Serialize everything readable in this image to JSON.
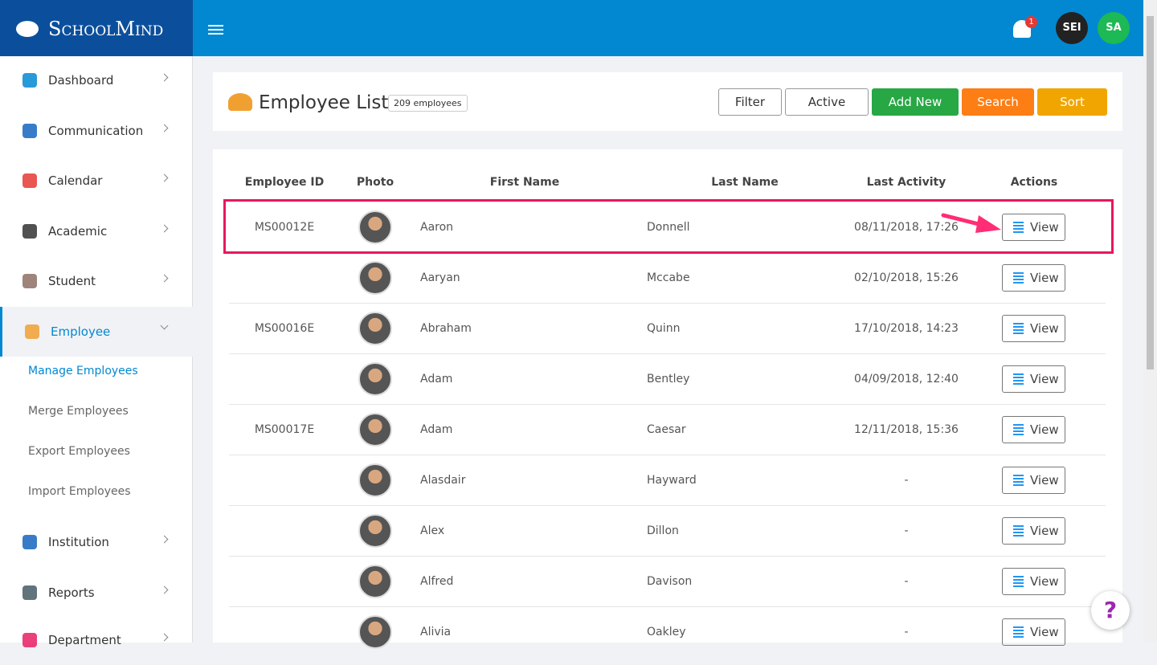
{
  "header": {
    "brand": "SchoolMind",
    "notification_count": "1",
    "avatars": [
      "SEI",
      "SA"
    ]
  },
  "sidebar": {
    "items": [
      "Dashboard",
      "Communication",
      "Calendar",
      "Academic",
      "Student",
      "Employee",
      "Institution",
      "Reports",
      "Department"
    ],
    "submenu": [
      "Manage Employees",
      "Merge Employees",
      "Export Employees",
      "Import Employees"
    ]
  },
  "page": {
    "title": "Employee List",
    "count": "209 employees",
    "buttons": [
      "Filter",
      "Active",
      "Add New",
      "Search",
      "Sort"
    ]
  },
  "table": {
    "columns": [
      "Employee ID",
      "Photo",
      "First Name",
      "Last Name",
      "Last Activity",
      "Actions"
    ],
    "rows": [
      {
        "id": "MS00012E",
        "first": "Aaron",
        "last": "Donnell",
        "activity": "08/11/2018, 17:26",
        "action": "View"
      },
      {
        "id": null,
        "first": "Aaryan",
        "last": "Mccabe",
        "activity": "02/10/2018, 15:26",
        "action": "View"
      },
      {
        "id": "MS00016E",
        "first": "Abraham",
        "last": "Quinn",
        "activity": "17/10/2018, 14:23",
        "action": "View"
      },
      {
        "id": null,
        "first": "Adam",
        "last": "Bentley",
        "activity": "04/09/2018, 12:40",
        "action": "View"
      },
      {
        "id": "MS00017E",
        "first": "Adam",
        "last": "Caesar",
        "activity": "12/11/2018, 15:36",
        "action": "View"
      },
      {
        "id": null,
        "first": "Alasdair",
        "last": "Hayward",
        "activity": "-",
        "action": "View"
      },
      {
        "id": null,
        "first": "Alex",
        "last": "Dillon",
        "activity": "-",
        "action": "View"
      },
      {
        "id": null,
        "first": "Alfred",
        "last": "Davison",
        "activity": "-",
        "action": "View"
      },
      {
        "id": null,
        "first": "Alivia",
        "last": "Oakley",
        "activity": "-",
        "action": "View"
      }
    ]
  },
  "help": "?"
}
